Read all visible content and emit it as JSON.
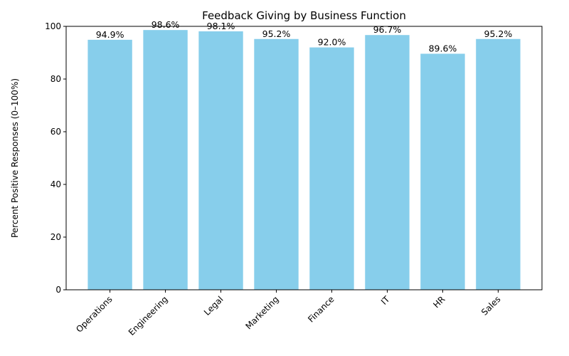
{
  "chart_data": {
    "type": "bar",
    "title": "Feedback Giving by Business Function",
    "xlabel": "",
    "ylabel": "Percent Positive Responses (0–100%)",
    "categories": [
      "Operations",
      "Engineering",
      "Legal",
      "Marketing",
      "Finance",
      "IT",
      "HR",
      "Sales"
    ],
    "values": [
      94.9,
      98.6,
      98.1,
      95.2,
      92.0,
      96.7,
      89.6,
      95.2
    ],
    "data_labels": [
      "94.9%",
      "98.6%",
      "98.1%",
      "95.2%",
      "92.0%",
      "96.7%",
      "89.6%",
      "95.2%"
    ],
    "ylim": [
      0,
      100
    ],
    "yticks": [
      0,
      20,
      40,
      60,
      80,
      100
    ],
    "ytick_labels": [
      "0",
      "20",
      "40",
      "60",
      "80",
      "100"
    ],
    "bar_color": "#87CEEB",
    "grid": false,
    "legend": false
  }
}
